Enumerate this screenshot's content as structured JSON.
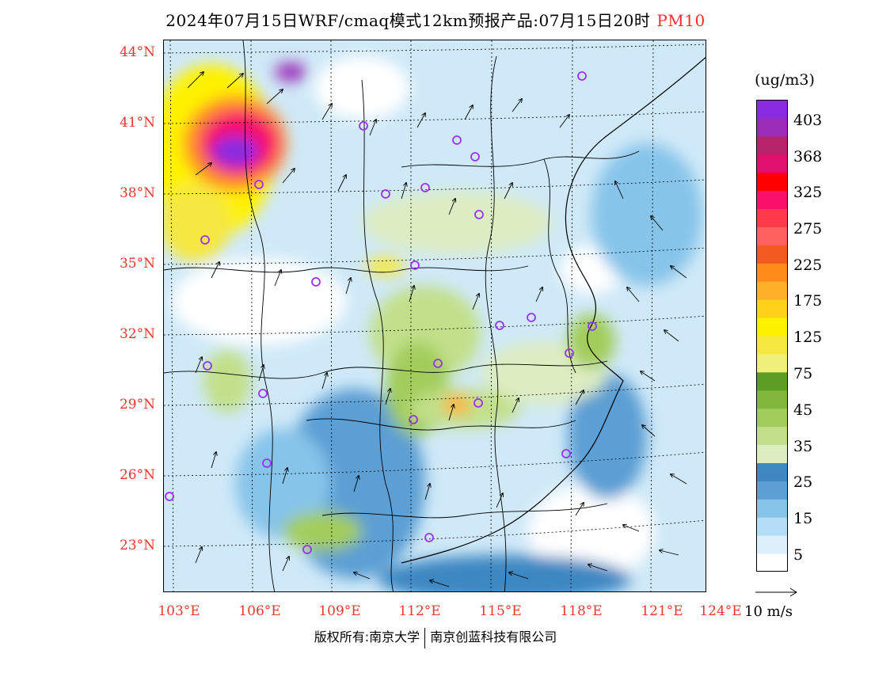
{
  "title": {
    "text": "2024年07月15日WRF/cmaq模式12km预报产品:07月15日20时",
    "pollutant": "PM10"
  },
  "axes": {
    "lat_labels": [
      "44°N",
      "41°N",
      "38°N",
      "35°N",
      "32°N",
      "29°N",
      "26°N",
      "23°N"
    ],
    "lon_labels": [
      "103°E",
      "106°E",
      "109°E",
      "112°E",
      "115°E",
      "118°E",
      "121°E",
      "124°E"
    ]
  },
  "colorbar": {
    "unit": "(ug/m3)",
    "labels": [
      "403",
      "368",
      "325",
      "275",
      "225",
      "175",
      "125",
      "75",
      "45",
      "35",
      "25",
      "15",
      "5"
    ],
    "colors": [
      "#ffffff",
      "#ddf0fb",
      "#b4def5",
      "#87c4ea",
      "#5b9fd4",
      "#3e87c2",
      "#ddedc2",
      "#c2e08a",
      "#a2cd5c",
      "#80b73c",
      "#5c9e24",
      "#eef07a",
      "#f6e840",
      "#fff200",
      "#ffd21a",
      "#ffb028",
      "#ff8c1a",
      "#f25a22",
      "#ff6060",
      "#ff3a4a",
      "#f8106a",
      "#ff0000",
      "#e0106e",
      "#b8246c",
      "#9a2db8",
      "#8a2be2"
    ]
  },
  "wind_legend": {
    "label": "10 m/s"
  },
  "copyright": {
    "text": "版权所有:南京大学",
    "company": "南京创蓝科技有限公司"
  },
  "colors": {
    "label_red": "#e8382f",
    "boundary": "#000000",
    "station_marker": "#9b30ff"
  }
}
